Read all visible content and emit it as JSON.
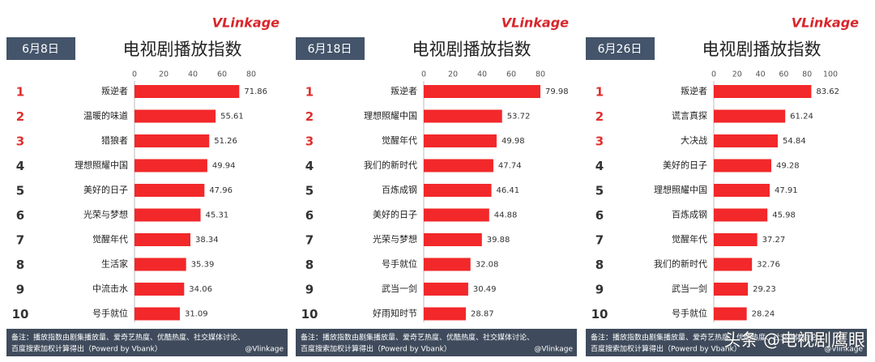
{
  "chart_data": [
    {
      "type": "bar",
      "orientation": "horizontal",
      "logo": "VLinkage",
      "date": "6月8日",
      "title": "电视剧播放指数",
      "ranks": [
        1,
        2,
        3,
        4,
        5,
        6,
        7,
        8,
        9,
        10
      ],
      "categories": [
        "叛逆者",
        "温暖的味道",
        "猎狼者",
        "理想照耀中国",
        "美好的日子",
        "光荣与梦想",
        "觉醒年代",
        "生活家",
        "中流击水",
        "号手就位"
      ],
      "values": [
        71.86,
        55.61,
        51.26,
        49.94,
        47.96,
        45.31,
        38.34,
        35.39,
        34.06,
        31.09
      ],
      "color": "#f2282a",
      "xlim": [
        0,
        80
      ],
      "xticks": [
        0,
        20,
        40,
        60,
        80
      ],
      "note": [
        "备注：播放指数由剧集播放量、爱奇艺热度、优酷热度、社交媒体讨论、",
        "百度搜索加权计算得出（Powerd by Vbank）"
      ],
      "credit": "@Vlinkage"
    },
    {
      "type": "bar",
      "orientation": "horizontal",
      "logo": "VLinkage",
      "date": "6月18日",
      "title": "电视剧播放指数",
      "ranks": [
        1,
        2,
        3,
        4,
        5,
        6,
        7,
        8,
        9,
        10
      ],
      "categories": [
        "叛逆者",
        "理想照耀中国",
        "觉醒年代",
        "我们的新时代",
        "百炼成钢",
        "美好的日子",
        "光荣与梦想",
        "号手就位",
        "武当一剑",
        "好雨知时节"
      ],
      "values": [
        79.98,
        53.72,
        49.98,
        47.74,
        46.41,
        44.88,
        39.88,
        32.08,
        30.49,
        28.87
      ],
      "color": "#f2282a",
      "xlim": [
        0,
        80
      ],
      "xticks": [
        0,
        20,
        40,
        60,
        80
      ],
      "note": [
        "备注：播放指数由剧集播放量、爱奇艺热度、优酷热度、社交媒体讨论、",
        "百度搜索加权计算得出（Powerd by Vbank）"
      ],
      "credit": "@Vlinkage"
    },
    {
      "type": "bar",
      "orientation": "horizontal",
      "logo": "VLinkage",
      "date": "6月26日",
      "title": "电视剧播放指数",
      "ranks": [
        1,
        2,
        3,
        4,
        5,
        6,
        7,
        8,
        9,
        10
      ],
      "categories": [
        "叛逆者",
        "谎言真探",
        "大决战",
        "美好的日子",
        "理想照耀中国",
        "百炼成钢",
        "觉醒年代",
        "我们的新时代",
        "武当一剑",
        "号手就位"
      ],
      "values": [
        83.62,
        61.24,
        54.84,
        49.28,
        47.91,
        45.98,
        37.27,
        32.76,
        29.23,
        28.24
      ],
      "color": "#f2282a",
      "xlim": [
        0,
        100
      ],
      "xticks": [
        0,
        20,
        40,
        60,
        80,
        100
      ],
      "note": [
        "备注：播放指数由剧集播放量、爱奇艺热度、优酷热度、社交媒体讨论、",
        "百度搜索加权计算得出（Powerd by Vbank）"
      ],
      "credit": "@Vlinkage"
    }
  ],
  "watermark": "头条 @电视剧鹰眼"
}
